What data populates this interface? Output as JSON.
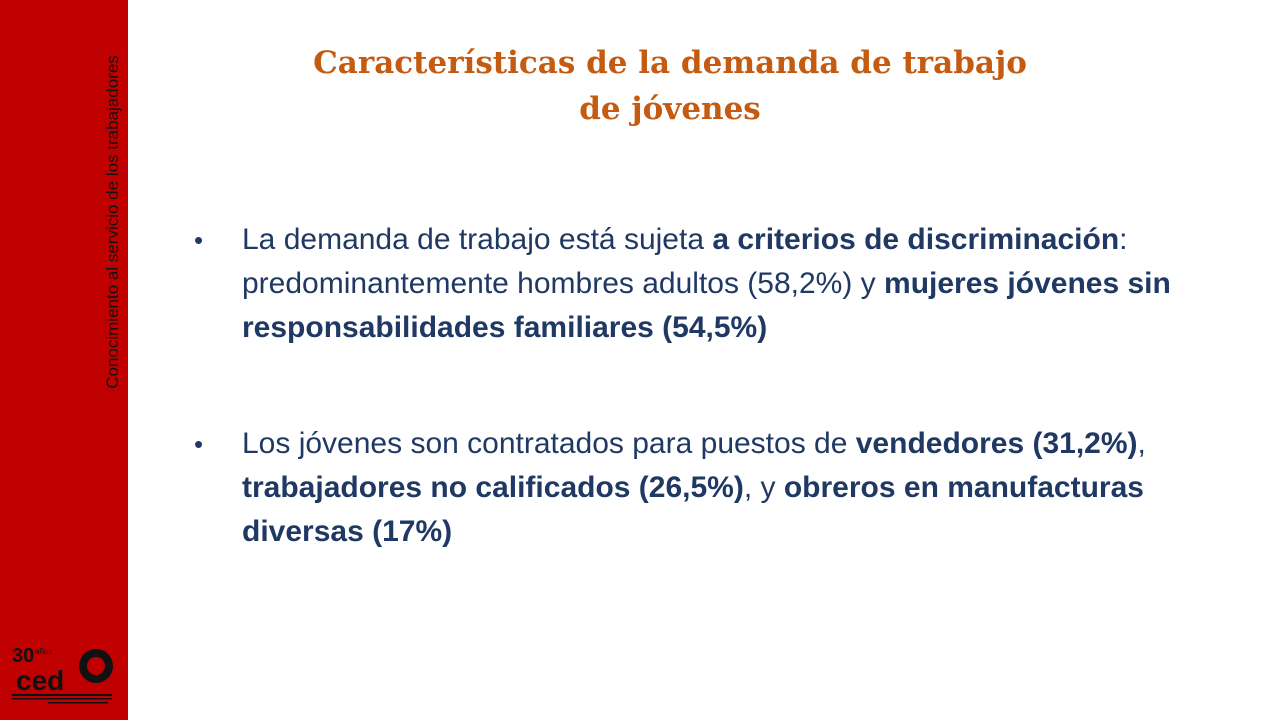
{
  "sidebar": {
    "tagline": "Conocimiento al servicio de los trabajadores",
    "logo": {
      "years": "30",
      "years_suffix": "años",
      "brand": "cedla",
      "caption": "Centro de Estudios para el Desarrollo Laboral y Agrario"
    }
  },
  "title": {
    "line1": "Características de la demanda de trabajo",
    "line2": "de jóvenes"
  },
  "bullets": [
    {
      "parts": [
        "La demanda de trabajo está sujeta ",
        "a criterios de discriminación",
        ": predominantemente hombres adultos (58,2%) y ",
        "mujeres jóvenes sin responsabilidades familiares (54,5%)"
      ]
    },
    {
      "parts": [
        "Los jóvenes son contratados para puestos de ",
        "vendedores (31,2%)",
        ", ",
        "trabajadores no calificados (26,5%)",
        ", y ",
        "obreros en manufacturas diversas (17%)"
      ]
    }
  ],
  "colors": {
    "sidebar": "#c00000",
    "title": "#c55a11",
    "body_text": "#1f3864"
  }
}
